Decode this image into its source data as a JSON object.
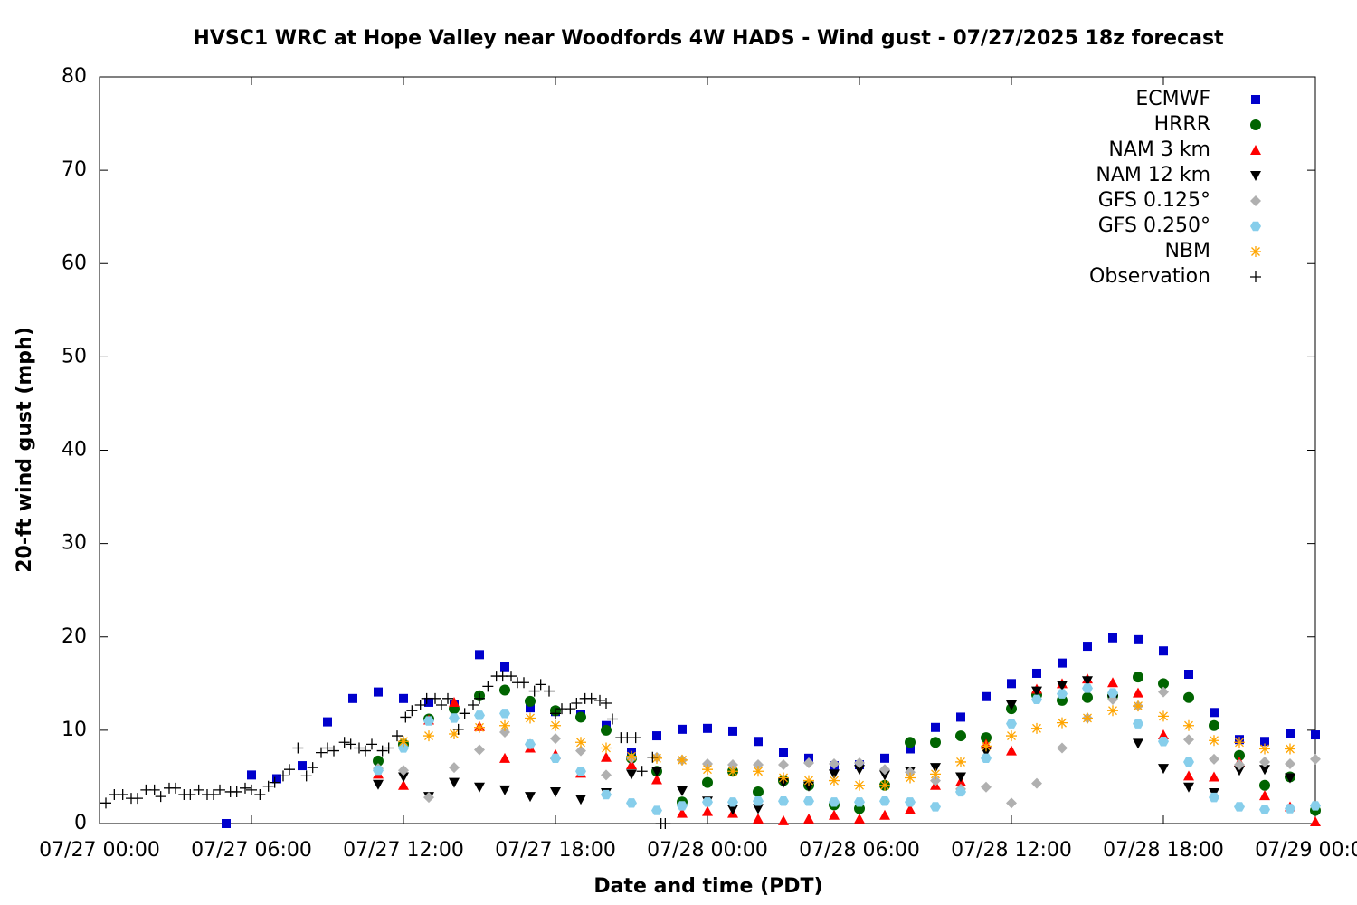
{
  "chart_data": {
    "type": "scatter",
    "title": "HVSC1 WRC at Hope Valley near Woodfords 4W HADS - Wind gust - 07/27/2025 18z forecast",
    "xlabel": "Date and time (PDT)",
    "ylabel": "20-ft wind gust (mph)",
    "xlim": [
      "07/27 00:00",
      "07/29 00:00"
    ],
    "xticks": [
      "07/27 00:00",
      "07/27 06:00",
      "07/27 12:00",
      "07/27 18:00",
      "07/28 00:00",
      "07/28 06:00",
      "07/28 12:00",
      "07/28 18:00",
      "07/29 00:00"
    ],
    "ylim": [
      0,
      80
    ],
    "yticks": [
      0,
      10,
      20,
      30,
      40,
      50,
      60,
      70,
      80
    ],
    "legend": "upper right",
    "grid": false,
    "x": [
      "07/27 05:00",
      "07/27 06:00",
      "07/27 07:00",
      "07/27 08:00",
      "07/27 09:00",
      "07/27 10:00",
      "07/27 11:00",
      "07/27 12:00",
      "07/27 13:00",
      "07/27 14:00",
      "07/27 15:00",
      "07/27 16:00",
      "07/27 17:00",
      "07/27 18:00",
      "07/27 19:00",
      "07/27 20:00",
      "07/27 21:00",
      "07/27 22:00",
      "07/27 23:00",
      "07/28 00:00",
      "07/28 01:00",
      "07/28 02:00",
      "07/28 03:00",
      "07/28 04:00",
      "07/28 05:00",
      "07/28 06:00",
      "07/28 07:00",
      "07/28 08:00",
      "07/28 09:00",
      "07/28 10:00",
      "07/28 11:00",
      "07/28 12:00",
      "07/28 13:00",
      "07/28 14:00",
      "07/28 15:00",
      "07/28 16:00",
      "07/28 17:00",
      "07/28 18:00",
      "07/28 19:00",
      "07/28 20:00",
      "07/28 21:00",
      "07/28 22:00",
      "07/28 23:00",
      "07/29 00:00"
    ],
    "series": [
      {
        "name": "ECMWF",
        "color": "#0000cc",
        "marker": "square",
        "values": [
          0,
          5.2,
          4.8,
          6.2,
          10.9,
          13.4,
          14.1,
          13.4,
          13,
          12.7,
          18.1,
          16.8,
          12.4,
          12,
          11.7,
          10.5,
          7.6,
          9.4,
          10.1,
          10.2,
          9.9,
          8.8,
          7.6,
          7,
          6.2,
          6.3,
          7,
          8,
          10.3,
          11.4,
          13.6,
          15,
          16.1,
          17.2,
          19,
          19.9,
          19.7,
          18.5,
          16,
          11.9,
          9,
          8.8,
          9.6,
          9.5
        ]
      },
      {
        "name": "HRRR",
        "color": "#006400",
        "marker": "circle",
        "values": [
          null,
          null,
          null,
          null,
          null,
          null,
          6.7,
          8.5,
          11.2,
          12.3,
          13.7,
          14.3,
          13.1,
          12.1,
          11.4,
          10,
          7,
          5.6,
          2.3,
          4.4,
          5.6,
          3.4,
          4.6,
          4.1,
          2,
          1.6,
          4.1,
          8.7,
          8.7,
          9.4,
          9.2,
          12.3,
          13.8,
          13.2,
          13.5,
          13.7,
          15.7,
          15,
          13.5,
          10.5,
          7.3,
          4.1,
          5,
          1.4
        ]
      },
      {
        "name": "NAM 3 km",
        "color": "#ff0000",
        "marker": "triangle-up",
        "values": [
          null,
          null,
          null,
          null,
          null,
          null,
          5.3,
          4.1,
          11.1,
          13,
          10.4,
          7,
          8.1,
          7.4,
          5.4,
          7.1,
          6.3,
          4.7,
          1.1,
          1.3,
          1.1,
          0.5,
          0.3,
          0.5,
          0.9,
          0.5,
          0.9,
          1.5,
          4.1,
          4.5,
          8.5,
          7.8,
          14.4,
          15,
          15.5,
          15.1,
          14,
          9.5,
          5.1,
          5,
          6.6,
          3,
          1.8,
          0.2
        ]
      },
      {
        "name": "NAM 12 km",
        "color": "#000000",
        "marker": "triangle-down",
        "values": [
          null,
          null,
          null,
          null,
          null,
          null,
          4.2,
          5,
          2.9,
          4.4,
          3.9,
          3.6,
          2.9,
          3.4,
          2.6,
          3.3,
          5.3,
          5.6,
          3.5,
          2.4,
          1.5,
          1.6,
          4.4,
          4,
          5.3,
          5.8,
          5.2,
          5.6,
          6,
          5,
          7.7,
          12.7,
          14.2,
          14.8,
          15.3,
          13.3,
          8.6,
          5.9,
          3.9,
          3.3,
          5.7,
          5.8,
          4.9,
          null
        ]
      },
      {
        "name": "GFS 0.125°",
        "color": "#b0b0b0",
        "marker": "diamond",
        "values": [
          null,
          null,
          null,
          null,
          null,
          null,
          5.9,
          5.7,
          2.8,
          6,
          7.9,
          9.8,
          8.5,
          9.1,
          7.8,
          5.2,
          7,
          7.1,
          6.8,
          6.4,
          6.3,
          6.3,
          6.3,
          6.5,
          6.4,
          6.5,
          5.8,
          5.5,
          4.6,
          3.7,
          3.9,
          2.2,
          4.3,
          8.1,
          11.3,
          13.3,
          12.6,
          14.1,
          9,
          6.9,
          6.3,
          6.6,
          6.4,
          6.9
        ]
      },
      {
        "name": "GFS 0.250°",
        "color": "#87ceeb",
        "marker": "pentagon",
        "values": [
          null,
          null,
          null,
          null,
          null,
          null,
          5.7,
          8.1,
          11,
          11.3,
          11.6,
          11.8,
          8.5,
          7,
          5.6,
          3.1,
          2.2,
          1.4,
          1.9,
          2.3,
          2.3,
          2.4,
          2.4,
          2.4,
          2.3,
          2.3,
          2.4,
          2.3,
          1.8,
          3.4,
          7,
          10.7,
          13.3,
          13.9,
          14.5,
          14,
          10.7,
          8.8,
          6.6,
          2.8,
          1.8,
          1.5,
          1.6,
          1.9
        ]
      },
      {
        "name": "NBM",
        "color": "#ffa500",
        "marker": "asterisk",
        "values": [
          null,
          null,
          null,
          null,
          null,
          null,
          null,
          8.8,
          9.4,
          9.6,
          10.3,
          10.5,
          11.3,
          10.5,
          8.7,
          8.1,
          7.2,
          7,
          6.8,
          5.8,
          5.6,
          5.6,
          4.9,
          4.6,
          4.6,
          4.1,
          4.1,
          4.9,
          5.3,
          6.6,
          8.3,
          9.4,
          10.2,
          10.8,
          11.3,
          12.1,
          12.6,
          11.5,
          10.5,
          8.9,
          8.7,
          8,
          8,
          null
        ]
      },
      {
        "name": "Observation",
        "color": "#000000",
        "marker": "plus",
        "x": [
          "07/27 00:15",
          "07/27 00:35",
          "07/27 00:55",
          "07/27 01:15",
          "07/27 01:30",
          "07/27 01:50",
          "07/27 02:10",
          "07/27 02:25",
          "07/27 02:45",
          "07/27 03:00",
          "07/27 03:20",
          "07/27 03:35",
          "07/27 03:55",
          "07/27 04:15",
          "07/27 04:30",
          "07/27 04:45",
          "07/27 05:10",
          "07/27 05:25",
          "07/27 05:45",
          "07/27 06:00",
          "07/27 06:20",
          "07/27 06:40",
          "07/27 06:55",
          "07/27 07:15",
          "07/27 07:30",
          "07/27 07:50",
          "07/27 08:10",
          "07/27 08:25",
          "07/27 08:45",
          "07/27 09:00",
          "07/27 09:15",
          "07/27 09:40",
          "07/27 09:55",
          "07/27 10:15",
          "07/27 10:30",
          "07/27 10:45",
          "07/27 11:10",
          "07/27 11:25",
          "07/27 11:45",
          "07/27 12:05",
          "07/27 12:20",
          "07/27 12:40",
          "07/27 12:55",
          "07/27 13:15",
          "07/27 13:30",
          "07/27 13:45",
          "07/27 14:10",
          "07/27 14:25",
          "07/27 14:45",
          "07/27 15:00",
          "07/27 15:20",
          "07/27 15:40",
          "07/27 15:55",
          "07/27 16:15",
          "07/27 16:30",
          "07/27 16:45",
          "07/27 17:10",
          "07/27 17:25",
          "07/27 17:45",
          "07/27 18:00",
          "07/27 18:15",
          "07/27 18:35",
          "07/27 18:50",
          "07/27 19:10",
          "07/27 19:25",
          "07/27 19:45",
          "07/27 20:00",
          "07/27 20:15",
          "07/27 20:35",
          "07/27 20:50",
          "07/27 21:10",
          "07/27 21:25",
          "07/27 21:50",
          "07/27 22:10",
          "07/27 22:20"
        ],
        "values": [
          2.2,
          3.1,
          3.1,
          2.7,
          2.7,
          3.6,
          3.6,
          2.9,
          3.8,
          3.8,
          3.1,
          3.1,
          3.6,
          3.1,
          3.1,
          3.6,
          3.4,
          3.4,
          3.8,
          3.6,
          3.1,
          4,
          4.4,
          5.1,
          5.8,
          8.1,
          5.1,
          6,
          7.6,
          8.1,
          7.8,
          8.7,
          8.5,
          8.1,
          7.8,
          8.5,
          7.8,
          8.1,
          9.4,
          11.4,
          12.1,
          12.7,
          13.4,
          13.4,
          12.7,
          13.4,
          10.1,
          11.8,
          12.7,
          13.4,
          14.7,
          15.8,
          15.8,
          15.8,
          15.1,
          15.1,
          14.2,
          14.9,
          14.2,
          11.8,
          12.3,
          12.3,
          12.9,
          13.4,
          13.4,
          13.2,
          12.9,
          11.2,
          9.2,
          9.2,
          9.2,
          5.6,
          7.1,
          0,
          0
        ]
      }
    ]
  }
}
